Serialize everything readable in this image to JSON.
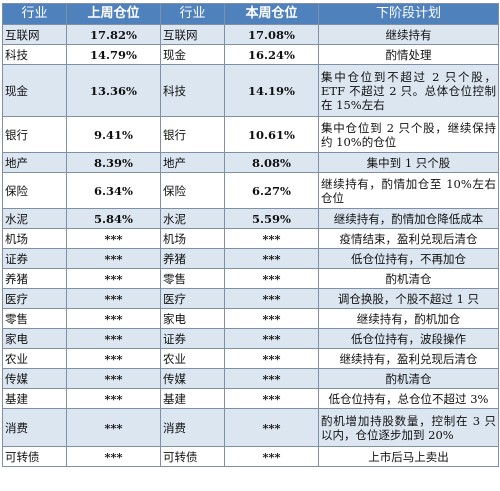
{
  "headers": {
    "industry_prev": "行业",
    "prev_position": "上周仓位",
    "industry_cur": "行业",
    "cur_position": "本周仓位",
    "plan": "下阶段计划"
  },
  "rows": [
    {
      "ind_prev": "互联网",
      "prev": "17.82%",
      "ind_cur": "互联网",
      "cur": "17.08%",
      "plan": "继续持有"
    },
    {
      "ind_prev": "科技",
      "prev": "14.79%",
      "ind_cur": "现金",
      "cur": "16.24%",
      "plan": "酌情处理"
    },
    {
      "ind_prev": "现金",
      "prev": "13.36%",
      "ind_cur": "科技",
      "cur": "14.19%",
      "plan": "集中仓位到不超过 2 只个股，ETF 不超过 2 只。总体仓位控制在 15%左右"
    },
    {
      "ind_prev": "银行",
      "prev": "9.41%",
      "ind_cur": "银行",
      "cur": "10.61%",
      "plan": "集中仓位到 2 只个股，继续保持约 10%的仓位"
    },
    {
      "ind_prev": "地产",
      "prev": "8.39%",
      "ind_cur": "地产",
      "cur": "8.08%",
      "plan": "集中到 1 只个股"
    },
    {
      "ind_prev": "保险",
      "prev": "6.34%",
      "ind_cur": "保险",
      "cur": "6.27%",
      "plan": "继续持有，酌情加仓至 10%左右仓位"
    },
    {
      "ind_prev": "水泥",
      "prev": "5.84%",
      "ind_cur": "水泥",
      "cur": "5.59%",
      "plan": "继续持有，酌情加仓降低成本"
    },
    {
      "ind_prev": "机场",
      "prev": "***",
      "ind_cur": "机场",
      "cur": "***",
      "plan": "疫情结束，盈利兑现后清仓"
    },
    {
      "ind_prev": "证券",
      "prev": "***",
      "ind_cur": "养猪",
      "cur": "***",
      "plan": "低仓位持有，不再加仓"
    },
    {
      "ind_prev": "养猪",
      "prev": "***",
      "ind_cur": "零售",
      "cur": "***",
      "plan": "酌机清仓"
    },
    {
      "ind_prev": "医疗",
      "prev": "***",
      "ind_cur": "医疗",
      "cur": "***",
      "plan": "调仓换股，个股不超过 1 只"
    },
    {
      "ind_prev": "零售",
      "prev": "***",
      "ind_cur": "家电",
      "cur": "***",
      "plan": "继续持有，酌机加仓"
    },
    {
      "ind_prev": "家电",
      "prev": "***",
      "ind_cur": "证券",
      "cur": "***",
      "plan": "低仓位持有，波段操作"
    },
    {
      "ind_prev": "农业",
      "prev": "***",
      "ind_cur": "农业",
      "cur": "***",
      "plan": "继续持有，盈利兑现后清仓"
    },
    {
      "ind_prev": "传媒",
      "prev": "***",
      "ind_cur": "传媒",
      "cur": "***",
      "plan": "酌机清仓"
    },
    {
      "ind_prev": "基建",
      "prev": "***",
      "ind_cur": "基建",
      "cur": "***",
      "plan": "低仓位持有，总仓位不超过 3%"
    },
    {
      "ind_prev": "消费",
      "prev": "***",
      "ind_cur": "消费",
      "cur": "***",
      "plan": "酌机增加持股数量，控制在 3 只以内，仓位逐步加到 20%"
    },
    {
      "ind_prev": "可转债",
      "prev": "***",
      "ind_cur": "可转债",
      "cur": "***",
      "plan": "上市后马上卖出"
    }
  ]
}
